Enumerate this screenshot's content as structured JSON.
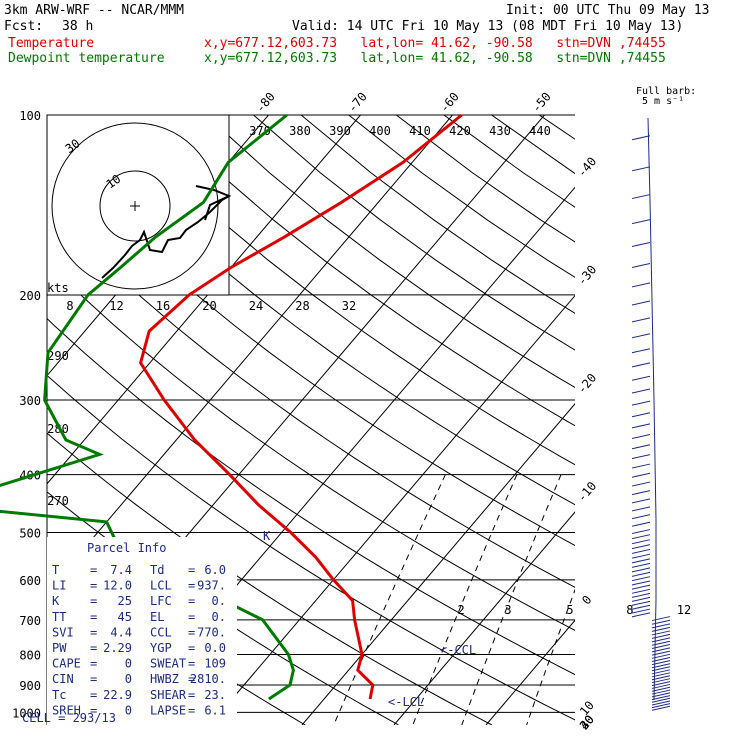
{
  "header": {
    "model": "3km ARW-WRF -- NCAR/MMM",
    "init": "Init: 00 UTC Thu 09 May 13",
    "fcst_label": "Fcst:",
    "fcst_value": "38 h",
    "valid": "Valid: 14 UTC Fri 10 May 13 (08 MDT Fri 10 May 13)",
    "temp_label": "Temperature",
    "temp_info": "x,y=677.12,603.73   lat,lon= 41.62, -90.58   stn=DVN ,74455",
    "dew_label": "Dewpoint temperature",
    "dew_info": "x,y=677.12,603.73   lat,lon= 41.62, -90.58   stn=DVN ,74455"
  },
  "barb_legend": [
    "Full barb:",
    "5 m s⁻¹"
  ],
  "colors": {
    "temperature": "#e00000",
    "dewpoint": "#007a00",
    "parcel": "#1d2a8a",
    "grid": "#000000"
  },
  "chart_data": {
    "type": "line",
    "title": "",
    "y_axis": "pressure (hPa), log scale",
    "pressure_levels": [
      100,
      200,
      300,
      400,
      500,
      600,
      700,
      800,
      900,
      1000
    ],
    "isotherm_labels": [
      -80,
      -70,
      -60,
      -50,
      -40,
      -30,
      -20,
      -10,
      0,
      10,
      20,
      30,
      40
    ],
    "dry_adiabat_labels": [
      370,
      380,
      390,
      400,
      410,
      420,
      430,
      440
    ],
    "theta_side_labels": [
      290,
      280,
      270
    ],
    "mixing_ratio_labels": [
      2,
      3,
      5,
      8,
      12,
      20
    ],
    "hodograph": {
      "unit_label": "kts",
      "ring_labels": [
        "10",
        "30"
      ],
      "axis_labels": [
        "8",
        "12",
        "16",
        "20",
        "24",
        "28",
        "32"
      ]
    },
    "series": [
      {
        "name": "Temperature",
        "color": "#e00000",
        "x": [
          -59,
          -61,
          -64,
          -67,
          -70,
          -72,
          -73,
          -71,
          -65,
          -58,
          -51,
          -45,
          -39,
          -34,
          -30,
          -26,
          -24,
          -20,
          -19,
          -16,
          -15
        ],
        "y": [
          100,
          120,
          140,
          160,
          180,
          200,
          230,
          260,
          300,
          350,
          400,
          450,
          500,
          550,
          600,
          650,
          700,
          800,
          850,
          900,
          950
        ]
      },
      {
        "name": "Dewpoint temperature",
        "color": "#007a00",
        "x": [
          -78,
          -80,
          -79,
          -81,
          -82,
          -83,
          -82,
          -78,
          -72,
          -67,
          -80,
          -60,
          -57,
          -60,
          -46,
          -40,
          -34,
          -28,
          -26,
          -25,
          -26
        ],
        "y": [
          100,
          120,
          140,
          160,
          180,
          200,
          250,
          300,
          350,
          370,
          450,
          480,
          520,
          550,
          600,
          650,
          700,
          800,
          850,
          900,
          950
        ]
      }
    ],
    "annotations": [
      "<-CCL",
      "<-LCL",
      "K"
    ]
  },
  "parcel_info": {
    "title": "Parcel Info",
    "rows": [
      [
        "T",
        "=",
        "7.4",
        "Td",
        "=",
        "6.0"
      ],
      [
        "LI",
        "=",
        "12.0",
        "LCL",
        "=",
        "937."
      ],
      [
        "K",
        "=",
        "25",
        "LFC",
        "=",
        "0."
      ],
      [
        "TT",
        "=",
        "45",
        "EL",
        "=",
        "0."
      ],
      [
        "SVI",
        "=",
        "4.4",
        "CCL",
        "=",
        "770."
      ],
      [
        "PW",
        "=",
        "2.29",
        "YGP",
        "=",
        "0.0"
      ],
      [
        "CAPE",
        "=",
        "0",
        "SWEAT",
        "=",
        "109"
      ],
      [
        "CIN",
        "=",
        "0",
        "HWBZ",
        "=",
        "2810."
      ],
      [
        "Tc",
        "=",
        "22.9",
        "SHEAR",
        "=",
        "23."
      ],
      [
        "SREH",
        "=",
        "0",
        "LAPSE",
        "=",
        "6.1"
      ]
    ],
    "cell": "CELL = 293/13"
  }
}
